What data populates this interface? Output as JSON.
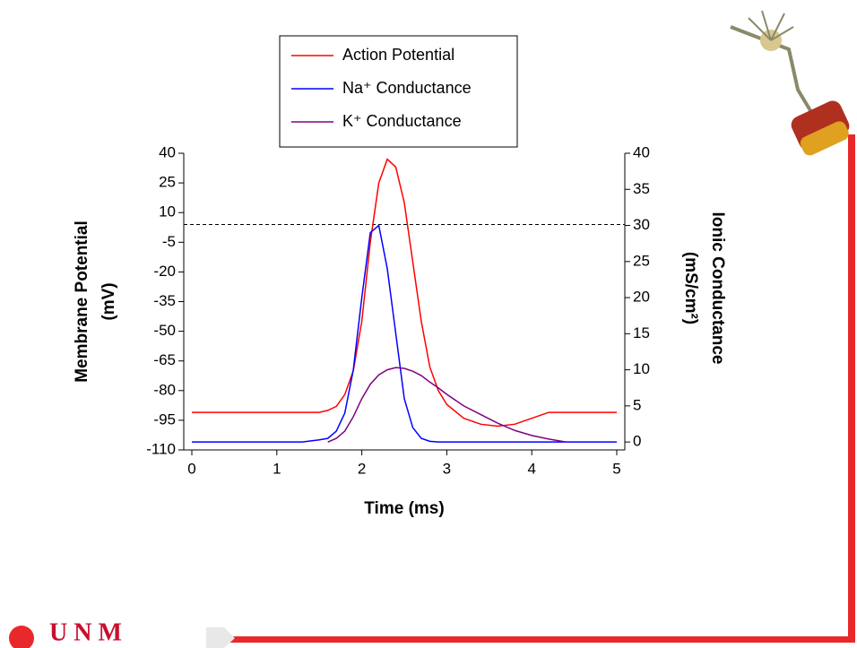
{
  "chart_data": {
    "type": "line",
    "x": [
      0,
      1,
      1.3,
      1.5,
      1.6,
      1.7,
      1.8,
      1.9,
      2.0,
      2.1,
      2.2,
      2.3,
      2.4,
      2.5,
      2.6,
      2.7,
      2.8,
      2.9,
      3.0,
      3.2,
      3.4,
      3.6,
      3.8,
      4.0,
      4.2,
      4.4,
      4.5,
      5
    ],
    "series": [
      {
        "name": "Action Potential",
        "color": "#ff0000",
        "values": [
          -91,
          -91,
          -91,
          -91,
          -90,
          -88,
          -82,
          -70,
          -45,
          -5,
          25,
          37,
          33,
          15,
          -15,
          -45,
          -68,
          -80,
          -87,
          -94,
          -97,
          -98,
          -97,
          -94,
          -91,
          -91,
          -91,
          -91
        ]
      },
      {
        "name": "Na⁺ Conductance",
        "color": "#0000ff",
        "axis": "y2",
        "values": [
          0,
          0,
          0,
          0.3,
          0.5,
          1.5,
          4,
          10,
          20,
          29,
          30,
          24,
          15,
          6,
          2,
          0.5,
          0.1,
          0,
          0,
          0,
          0,
          0,
          0,
          0,
          0,
          0,
          0,
          0
        ]
      },
      {
        "name": "K⁺ Conductance",
        "color": "#800080",
        "axis": "y2",
        "values": [
          null,
          null,
          null,
          null,
          0,
          0.5,
          1.5,
          3.5,
          6,
          8,
          9.3,
          10,
          10.3,
          10.2,
          9.8,
          9.2,
          8.3,
          7.5,
          6.6,
          5,
          3.8,
          2.6,
          1.6,
          0.9,
          0.4,
          0,
          null,
          null
        ]
      }
    ],
    "xlabel": "Time (ms)",
    "ylabel": [
      "Membrane Potential",
      "(mV)"
    ],
    "y2label": [
      "Ionic Conductance",
      "(mS/cm²)"
    ],
    "xlim": [
      0,
      5
    ],
    "xticks": [
      0,
      1,
      2,
      3,
      4,
      5
    ],
    "ylim": [
      -110,
      40
    ],
    "yticks": [
      40,
      25,
      10,
      -5,
      -20,
      -35,
      -50,
      -65,
      -80,
      -95,
      -110
    ],
    "y2lim": [
      -1.1,
      40
    ],
    "y2ticks": [
      40,
      35,
      30,
      25,
      20,
      15,
      10,
      5,
      0
    ],
    "reference_line": 4
  },
  "footer": {
    "logo": "U N M"
  }
}
